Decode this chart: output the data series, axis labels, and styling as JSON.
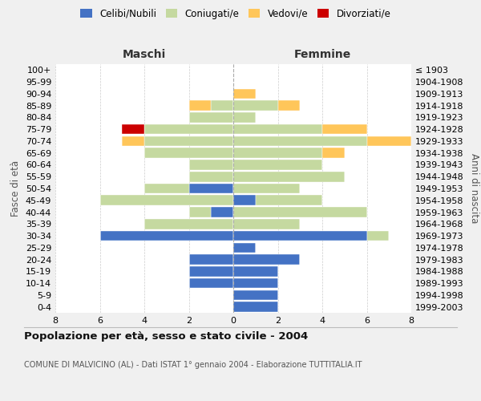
{
  "age_groups": [
    "0-4",
    "5-9",
    "10-14",
    "15-19",
    "20-24",
    "25-29",
    "30-34",
    "35-39",
    "40-44",
    "45-49",
    "50-54",
    "55-59",
    "60-64",
    "65-69",
    "70-74",
    "75-79",
    "80-84",
    "85-89",
    "90-94",
    "95-99",
    "100+"
  ],
  "birth_years": [
    "1999-2003",
    "1994-1998",
    "1989-1993",
    "1984-1988",
    "1979-1983",
    "1974-1978",
    "1969-1973",
    "1964-1968",
    "1959-1963",
    "1954-1958",
    "1949-1953",
    "1944-1948",
    "1939-1943",
    "1934-1938",
    "1929-1933",
    "1924-1928",
    "1919-1923",
    "1914-1918",
    "1909-1913",
    "1904-1908",
    "≤ 1903"
  ],
  "maschi": {
    "celibi": [
      0,
      0,
      2,
      2,
      2,
      0,
      6,
      0,
      1,
      0,
      2,
      0,
      0,
      0,
      0,
      0,
      0,
      0,
      0,
      0,
      0
    ],
    "coniugati": [
      0,
      0,
      0,
      0,
      0,
      0,
      0,
      4,
      1,
      6,
      2,
      2,
      2,
      4,
      4,
      4,
      2,
      1,
      0,
      0,
      0
    ],
    "vedovi": [
      0,
      0,
      0,
      0,
      0,
      0,
      0,
      0,
      0,
      0,
      0,
      0,
      0,
      0,
      1,
      0,
      0,
      1,
      0,
      0,
      0
    ],
    "divorziati": [
      0,
      0,
      0,
      0,
      0,
      0,
      0,
      0,
      0,
      0,
      0,
      0,
      0,
      0,
      0,
      1,
      0,
      0,
      0,
      0,
      0
    ]
  },
  "femmine": {
    "nubili": [
      2,
      2,
      2,
      2,
      3,
      1,
      6,
      0,
      0,
      1,
      0,
      0,
      0,
      0,
      0,
      0,
      0,
      0,
      0,
      0,
      0
    ],
    "coniugate": [
      0,
      0,
      0,
      0,
      0,
      0,
      1,
      3,
      6,
      3,
      3,
      5,
      4,
      4,
      6,
      4,
      1,
      2,
      0,
      0,
      0
    ],
    "vedove": [
      0,
      0,
      0,
      0,
      0,
      0,
      0,
      0,
      0,
      0,
      0,
      0,
      0,
      1,
      2,
      2,
      0,
      1,
      1,
      0,
      0
    ],
    "divorziate": [
      0,
      0,
      0,
      0,
      0,
      0,
      0,
      0,
      0,
      0,
      0,
      0,
      0,
      0,
      0,
      0,
      0,
      0,
      0,
      0,
      0
    ]
  },
  "color_celibi": "#4472c4",
  "color_coniugati": "#c5d9a0",
  "color_vedovi": "#ffc65a",
  "color_divorziati": "#cc0000",
  "title": "Popolazione per età, sesso e stato civile - 2004",
  "subtitle": "COMUNE DI MALVICINO (AL) - Dati ISTAT 1° gennaio 2004 - Elaborazione TUTTITALIA.IT",
  "xlabel_left": "Maschi",
  "xlabel_right": "Femmine",
  "ylabel_left": "Fasce di età",
  "ylabel_right": "Anni di nascita",
  "xlim": 8,
  "bg_color": "#f0f0f0",
  "plot_bg": "#ffffff",
  "grid_color": "#cccccc"
}
